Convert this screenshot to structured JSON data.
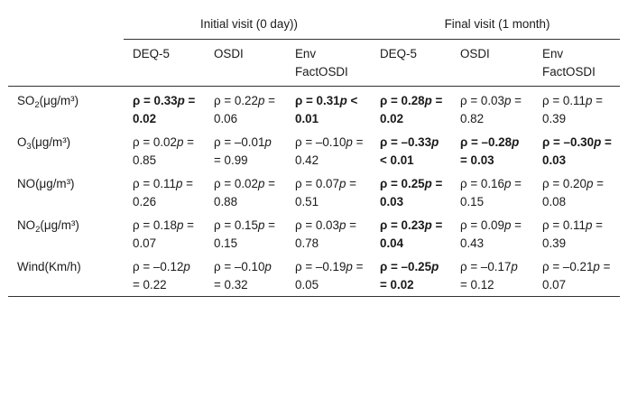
{
  "table": {
    "groups": [
      {
        "label": "Initial visit (0 day))",
        "span": 3
      },
      {
        "label": "Final visit (1 month)",
        "span": 3
      }
    ],
    "columns": [
      "DEQ-5",
      "OSDI",
      "Env FactOSDI",
      "DEQ-5",
      "OSDI",
      "Env FactOSDI"
    ],
    "rows": [
      {
        "base": "SO",
        "sub": "2",
        "unit": "(μg/m³)",
        "cells": [
          {
            "text": "ρ = 0.33p = 0.02",
            "bold": true
          },
          {
            "text": "ρ = 0.22p = 0.06",
            "bold": false
          },
          {
            "text": "ρ = 0.31p < 0.01",
            "bold": true
          },
          {
            "text": "ρ = 0.28p = 0.02",
            "bold": true
          },
          {
            "text": "ρ = 0.03p = 0.82",
            "bold": false
          },
          {
            "text": "ρ = 0.11p = 0.39",
            "bold": false
          }
        ]
      },
      {
        "base": "O",
        "sub": "3",
        "unit": "(μg/m³)",
        "cells": [
          {
            "text": "ρ = 0.02p = 0.85",
            "bold": false
          },
          {
            "text": "ρ = –0.01p = 0.99",
            "bold": false
          },
          {
            "text": "ρ = –0.10p = 0.42",
            "bold": false
          },
          {
            "text": "ρ = –0.33p < 0.01",
            "bold": true
          },
          {
            "text": "ρ = –0.28p = 0.03",
            "bold": true
          },
          {
            "text": "ρ = –0.30p = 0.03",
            "bold": true
          }
        ]
      },
      {
        "base": "NO",
        "sub": "",
        "unit": "(μg/m³)",
        "cells": [
          {
            "text": "ρ = 0.11p = 0.26",
            "bold": false
          },
          {
            "text": "ρ = 0.02p = 0.88",
            "bold": false
          },
          {
            "text": "ρ = 0.07p = 0.51",
            "bold": false
          },
          {
            "text": "ρ = 0.25p = 0.03",
            "bold": true
          },
          {
            "text": "ρ = 0.16p = 0.15",
            "bold": false
          },
          {
            "text": "ρ = 0.20p = 0.08",
            "bold": false
          }
        ]
      },
      {
        "base": "NO",
        "sub": "2",
        "unit": "(μg/m³)",
        "cells": [
          {
            "text": "ρ = 0.18p = 0.07",
            "bold": false
          },
          {
            "text": "ρ = 0.15p = 0.15",
            "bold": false
          },
          {
            "text": "ρ = 0.03p = 0.78",
            "bold": false
          },
          {
            "text": "ρ = 0.23p = 0.04",
            "bold": true
          },
          {
            "text": "ρ = 0.09p = 0.43",
            "bold": false
          },
          {
            "text": "ρ = 0.11p = 0.39",
            "bold": false
          }
        ]
      },
      {
        "base": "Wind",
        "sub": "",
        "unit": "(Km/h)",
        "cells": [
          {
            "text": "ρ = –0.12p = 0.22",
            "bold": false
          },
          {
            "text": "ρ = –0.10p = 0.32",
            "bold": false
          },
          {
            "text": "ρ = –0.19p = 0.05",
            "bold": false
          },
          {
            "text": "ρ = –0.25p = 0.02",
            "bold": true
          },
          {
            "text": "ρ = –0.17p = 0.12",
            "bold": false
          },
          {
            "text": "ρ = –0.21p = 0.07",
            "bold": false
          }
        ]
      }
    ]
  }
}
